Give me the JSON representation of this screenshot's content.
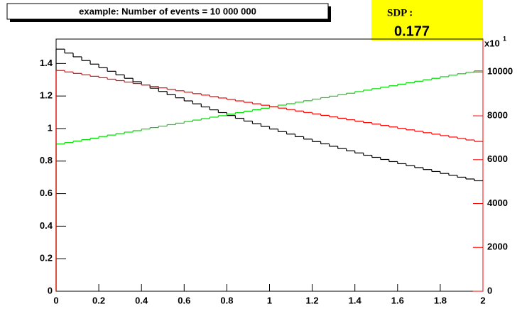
{
  "chart_data": {
    "type": "histogram",
    "title": "example: Number of events = 10 000 000",
    "stats": {
      "label": "SDP :",
      "value": 0.177
    },
    "bins": [
      0,
      0.04,
      0.08,
      0.12,
      0.16,
      0.2,
      0.24,
      0.28,
      0.32,
      0.36,
      0.4,
      0.44,
      0.48,
      0.52,
      0.56,
      0.6,
      0.64,
      0.68,
      0.72,
      0.76,
      0.8,
      0.84,
      0.88,
      0.92,
      0.96,
      1,
      1.04,
      1.08,
      1.12,
      1.16,
      1.2,
      1.24,
      1.28,
      1.32,
      1.36,
      1.4,
      1.44,
      1.48,
      1.52,
      1.56,
      1.6,
      1.64,
      1.68,
      1.72,
      1.76,
      1.8,
      1.84,
      1.88,
      1.92,
      1.96,
      2
    ],
    "series": [
      {
        "color": "#000000",
        "axis": "y",
        "values": [
          1.488,
          1.464,
          1.441,
          1.418,
          1.396,
          1.374,
          1.352,
          1.33,
          1.309,
          1.288,
          1.268,
          1.248,
          1.228,
          1.208,
          1.189,
          1.17,
          1.152,
          1.133,
          1.115,
          1.098,
          1.08,
          1.063,
          1.046,
          1.03,
          1.013,
          0.997,
          0.981,
          0.966,
          0.95,
          0.935,
          0.92,
          0.906,
          0.891,
          0.877,
          0.863,
          0.85,
          0.836,
          0.823,
          0.81,
          0.797,
          0.784,
          0.772,
          0.76,
          0.748,
          0.736,
          0.724,
          0.713,
          0.701,
          0.69,
          0.679
        ]
      },
      {
        "color": "#00dd00",
        "axis": "y",
        "values": [
          0.905,
          0.914,
          0.923,
          0.932,
          0.941,
          0.951,
          0.96,
          0.969,
          0.978,
          0.987,
          0.997,
          1.006,
          1.015,
          1.024,
          1.033,
          1.043,
          1.052,
          1.061,
          1.07,
          1.079,
          1.089,
          1.098,
          1.107,
          1.116,
          1.125,
          1.135,
          1.144,
          1.153,
          1.162,
          1.171,
          1.181,
          1.19,
          1.199,
          1.208,
          1.217,
          1.227,
          1.236,
          1.245,
          1.254,
          1.263,
          1.273,
          1.282,
          1.291,
          1.3,
          1.309,
          1.319,
          1.328,
          1.337,
          1.346,
          1.355
        ]
      },
      {
        "color": "#ff0000",
        "axis": "y2",
        "values": [
          10067,
          10001,
          9935,
          9869,
          9803,
          9737,
          9671,
          9605,
          9539,
          9473,
          9407,
          9341,
          9275,
          9209,
          9143,
          9077,
          9011,
          8945,
          8879,
          8813,
          8747,
          8681,
          8615,
          8549,
          8483,
          8417,
          8351,
          8285,
          8219,
          8153,
          8087,
          8021,
          7955,
          7889,
          7823,
          7757,
          7691,
          7625,
          7559,
          7493,
          7427,
          7361,
          7295,
          7229,
          7163,
          7097,
          7031,
          6965,
          6899,
          6833
        ]
      }
    ],
    "xlim": [
      0,
      2
    ],
    "xticks": [
      0,
      0.2,
      0.4,
      0.6,
      0.8,
      1,
      1.2,
      1.4,
      1.6,
      1.8,
      2
    ],
    "ylim": [
      0,
      1.55
    ],
    "yticks": [
      0,
      0.2,
      0.4,
      0.6,
      0.8,
      1,
      1.2,
      1.4
    ],
    "y2lim": [
      0,
      11500
    ],
    "y2ticks": [
      0,
      2000,
      4000,
      6000,
      8000,
      10000
    ],
    "y2color": "#ff0000",
    "y2_exponent": {
      "base": "x10",
      "power": "1"
    }
  }
}
